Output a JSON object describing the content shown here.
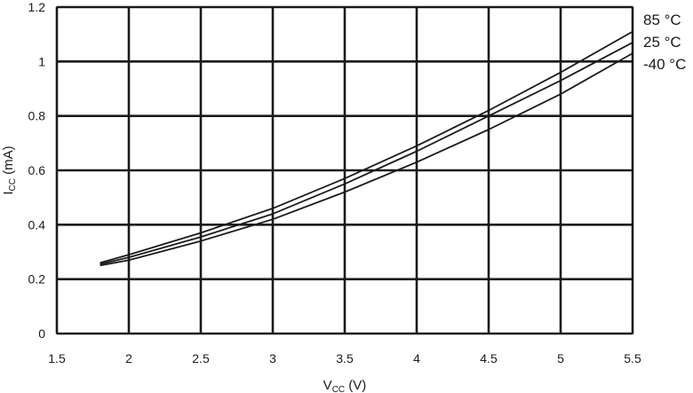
{
  "chart_data": {
    "type": "line",
    "title": "",
    "xlabel_main": "V",
    "xlabel_sub": "CC",
    "xlabel_unit": " (V)",
    "ylabel_main": "I",
    "ylabel_sub": "CC",
    "ylabel_unit": " (mA)",
    "xlim": [
      1.5,
      5.5
    ],
    "ylim": [
      0,
      1.2
    ],
    "x_ticks": [
      1.5,
      2,
      2.5,
      3,
      3.5,
      4,
      4.5,
      5,
      5.5
    ],
    "x_tick_labels": [
      "1.5",
      "2",
      "2.5",
      "3",
      "3.5",
      "4",
      "4.5",
      "5",
      "5.5"
    ],
    "y_ticks": [
      0,
      0.2,
      0.4,
      0.6,
      0.8,
      1,
      1.2
    ],
    "y_tick_labels": [
      "0",
      "0.2",
      "0.4",
      "0.6",
      "0.8",
      "1",
      "1.2"
    ],
    "grid": true,
    "legend_placement": "right, at line ends",
    "series": [
      {
        "name": "85 °C",
        "x": [
          1.8,
          2.0,
          2.5,
          3.0,
          3.5,
          4.0,
          4.5,
          5.0,
          5.5
        ],
        "y": [
          0.26,
          0.29,
          0.37,
          0.46,
          0.57,
          0.69,
          0.82,
          0.96,
          1.11
        ]
      },
      {
        "name": "25 °C",
        "x": [
          1.8,
          2.0,
          2.5,
          3.0,
          3.5,
          4.0,
          4.5,
          5.0,
          5.5
        ],
        "y": [
          0.255,
          0.28,
          0.355,
          0.44,
          0.55,
          0.67,
          0.8,
          0.93,
          1.07
        ]
      },
      {
        "name": "-40 °C",
        "x": [
          1.8,
          2.0,
          2.5,
          3.0,
          3.5,
          4.0,
          4.5,
          5.0,
          5.5
        ],
        "y": [
          0.25,
          0.27,
          0.34,
          0.42,
          0.52,
          0.63,
          0.75,
          0.88,
          1.03
        ]
      }
    ]
  }
}
